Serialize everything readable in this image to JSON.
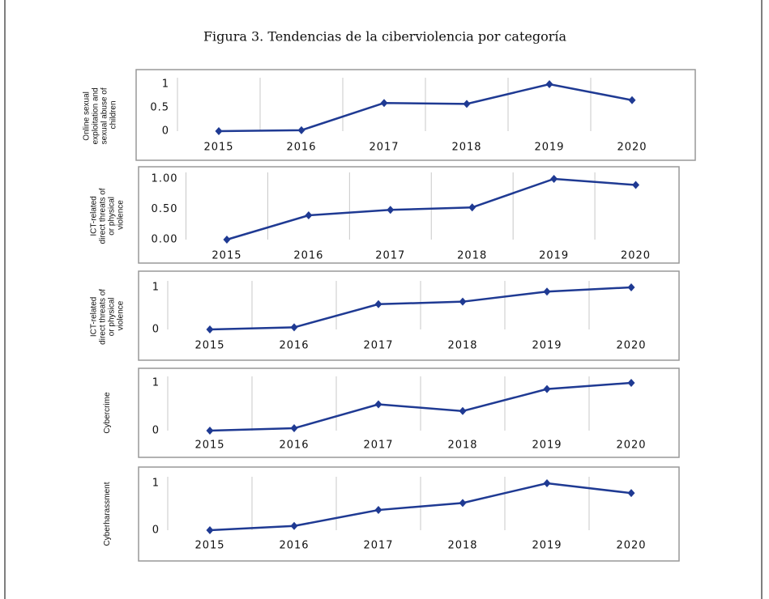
{
  "title": "Figura 3. Tendencias de la ciberviolencia por categoría",
  "chart_data": [
    {
      "type": "line",
      "ylabel": "Online sexual exploitation and sexual abuse of children",
      "categories": [
        "2015",
        "2016",
        "2017",
        "2018",
        "2019",
        "2020"
      ],
      "series": [
        {
          "color": "#1f3a93",
          "values": [
            0,
            0.02,
            0.6,
            0.58,
            1,
            0.66
          ]
        }
      ],
      "ylim": [
        0,
        1
      ],
      "yticks": [
        0,
        0.5,
        1
      ]
    },
    {
      "type": "line",
      "ylabel": "ICT-related direct threats of or physical violence",
      "categories": [
        "2015",
        "2016",
        "2017",
        "2018",
        "2019",
        "2020"
      ],
      "series": [
        {
          "color": "#1f3a93",
          "values": [
            0,
            0.4,
            0.49,
            0.53,
            1,
            0.9
          ]
        }
      ],
      "ylim": [
        0,
        1
      ],
      "yticks": [
        {
          "value": 0,
          "label": "0.00"
        },
        {
          "value": 0.5,
          "label": "0.50"
        },
        {
          "value": 1,
          "label": "1.00"
        }
      ]
    },
    {
      "type": "line",
      "ylabel": "ICT-related direct threats of or physical violence",
      "categories": [
        "2015",
        "2016",
        "2017",
        "2018",
        "2019",
        "2020"
      ],
      "series": [
        {
          "color": "#1f3a93",
          "values": [
            0,
            0.05,
            0.6,
            0.66,
            0.9,
            1
          ]
        }
      ],
      "ylim": [
        0,
        1
      ],
      "yticks": [
        0,
        1
      ]
    },
    {
      "type": "line",
      "ylabel": "Cybercrime",
      "categories": [
        "2015",
        "2016",
        "2017",
        "2018",
        "2019",
        "2020"
      ],
      "series": [
        {
          "color": "#1f3a93",
          "values": [
            0,
            0.05,
            0.55,
            0.41,
            0.87,
            1
          ]
        }
      ],
      "ylim": [
        0,
        1
      ],
      "yticks": [
        0,
        1
      ]
    },
    {
      "type": "line",
      "ylabel": "Cyberharassment",
      "categories": [
        "2015",
        "2016",
        "2017",
        "2018",
        "2019",
        "2020"
      ],
      "series": [
        {
          "color": "#1f3a93",
          "values": [
            0,
            0.09,
            0.43,
            0.58,
            1,
            0.79
          ]
        }
      ],
      "ylim": [
        0,
        1
      ],
      "yticks": [
        0,
        1
      ]
    }
  ]
}
